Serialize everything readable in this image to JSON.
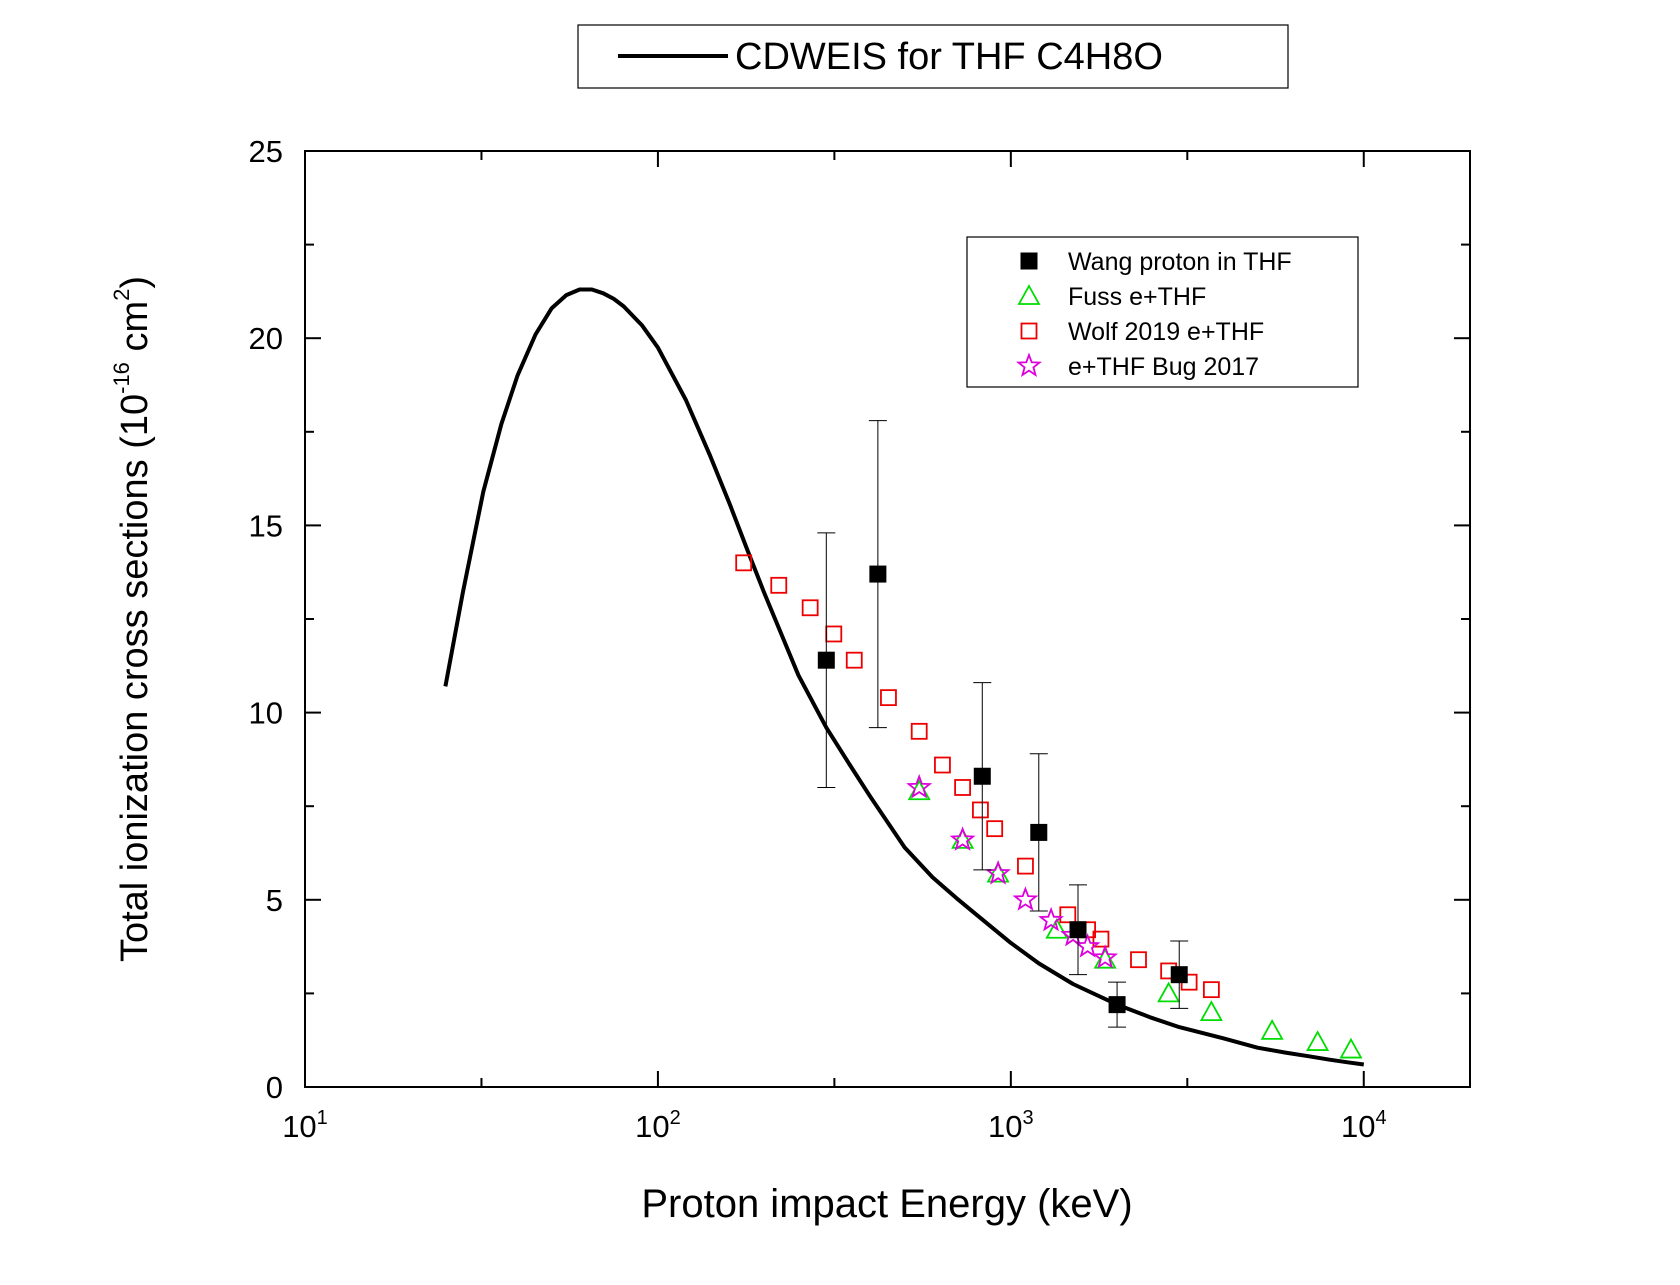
{
  "chart_data": {
    "type": "scatter",
    "title": "CDWEIS for THF C4H8O",
    "xlabel": "Proton impact Energy (keV)",
    "ylabel": {
      "prefix": "Total ionization cross sections (10",
      "exponent": "-16",
      "unit": " cm",
      "unit_exponent": "2",
      "suffix": ")"
    },
    "xscale": "log",
    "xlim": [
      10,
      20000
    ],
    "ylim": [
      0,
      25
    ],
    "yticks": [
      0,
      5,
      10,
      15,
      20,
      25
    ],
    "ytick_labels": [
      "0",
      "5",
      "10",
      "15",
      "20",
      "25"
    ],
    "xticks": [
      10,
      100,
      1000,
      10000
    ],
    "xtick_labels": [
      {
        "base": "10",
        "exp": "1"
      },
      {
        "base": "10",
        "exp": "2"
      },
      {
        "base": "10",
        "exp": "3"
      },
      {
        "base": "10",
        "exp": "4"
      }
    ],
    "grid": false,
    "legend_position": "top-right",
    "title_legend_position": "top-center",
    "curve": {
      "name": "CDWEIS for THF C4H8O",
      "style": "line",
      "color": "#000000",
      "x": [
        25,
        28,
        32,
        36,
        40,
        45,
        50,
        55,
        60,
        65,
        70,
        75,
        80,
        90,
        100,
        120,
        140,
        160,
        180,
        200,
        250,
        300,
        350,
        400,
        500,
        600,
        700,
        800,
        1000,
        1200,
        1500,
        2000,
        2500,
        3000,
        4000,
        5000,
        6000,
        7000,
        8000,
        9000,
        10000
      ],
      "y": [
        10.7,
        13.2,
        15.9,
        17.7,
        19.0,
        20.1,
        20.8,
        21.15,
        21.3,
        21.3,
        21.2,
        21.05,
        20.85,
        20.35,
        19.75,
        18.35,
        16.9,
        15.55,
        14.3,
        13.2,
        11.0,
        9.6,
        8.6,
        7.75,
        6.4,
        5.6,
        5.05,
        4.6,
        3.85,
        3.3,
        2.75,
        2.2,
        1.85,
        1.6,
        1.3,
        1.05,
        0.92,
        0.82,
        0.73,
        0.66,
        0.6
      ]
    },
    "series": [
      {
        "name": "Wang proton in THF",
        "marker": "filled-square",
        "color": "#000000",
        "x": [
          300,
          420,
          830,
          1200,
          1550,
          2000,
          3000
        ],
        "y": [
          11.4,
          13.7,
          8.3,
          6.8,
          4.2,
          2.2,
          3.0
        ],
        "err": [
          3.4,
          4.1,
          2.5,
          2.1,
          1.2,
          0.6,
          0.9
        ]
      },
      {
        "name": "Fuss e+THF",
        "marker": "open-triangle",
        "color": "#00dd00",
        "x": [
          550,
          730,
          920,
          1350,
          1850,
          2800,
          3700,
          5500,
          7400,
          9200
        ],
        "y": [
          7.9,
          6.6,
          5.7,
          4.2,
          3.4,
          2.5,
          2.0,
          1.5,
          1.2,
          1.0
        ]
      },
      {
        "name": "Wolf 2019 e+THF",
        "marker": "open-square",
        "color": "#ee0000",
        "x": [
          175,
          220,
          270,
          315,
          360,
          450,
          550,
          640,
          730,
          820,
          900,
          1100,
          1450,
          1650,
          1800,
          2300,
          2800,
          3200,
          3700
        ],
        "y": [
          14.0,
          13.4,
          12.8,
          12.1,
          11.4,
          10.4,
          9.5,
          8.6,
          8.0,
          7.4,
          6.9,
          5.9,
          4.6,
          4.2,
          3.95,
          3.4,
          3.1,
          2.8,
          2.6
        ]
      },
      {
        "name": "e+THF Bug 2017",
        "marker": "open-star",
        "color": "#dd00dd",
        "x": [
          550,
          730,
          920,
          1100,
          1300,
          1500,
          1650,
          1850
        ],
        "y": [
          8.0,
          6.6,
          5.7,
          5.0,
          4.45,
          4.05,
          3.75,
          3.45
        ]
      }
    ]
  }
}
